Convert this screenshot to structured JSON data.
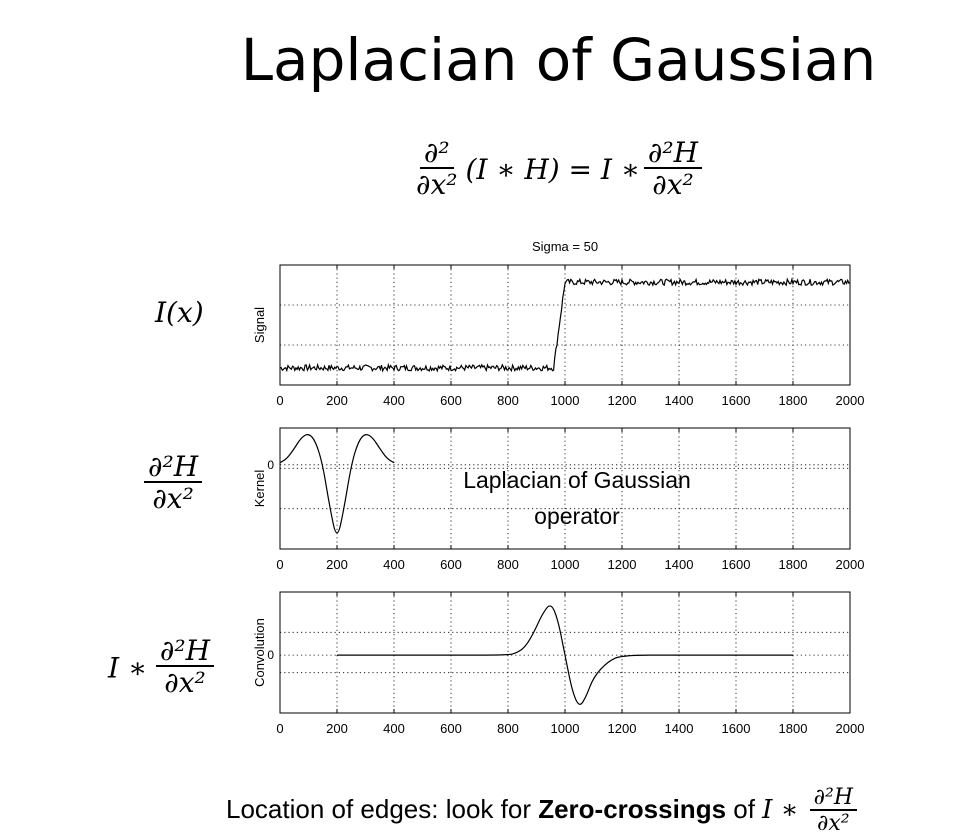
{
  "title": "Laplacian of Gaussian",
  "equation": {
    "lhs_num": "∂²",
    "lhs_den": "∂x²",
    "lhs_rest": "(I ∗ H) = I ∗",
    "rhs_num": "∂²H",
    "rhs_den": "∂x²"
  },
  "panel_labels": {
    "signal": "I(x)",
    "kernel_num": "∂²H",
    "kernel_den": "∂x²",
    "conv_prefix": "I ∗",
    "conv_num": "∂²H",
    "conv_den": "∂x²"
  },
  "annotation": {
    "line1": "Laplacian of Gaussian",
    "line2": "operator"
  },
  "caption": {
    "prefix": "Location of  edges: look for ",
    "bold": "Zero-crossings",
    "suffix": " of ",
    "expr": "I ∗",
    "num": "∂²H",
    "den": "∂x²"
  },
  "chart_data": [
    {
      "type": "line",
      "title": "Sigma = 50",
      "ylabel": "Signal",
      "xlabel": "",
      "xlim": [
        0,
        2000
      ],
      "xticks": [
        "0",
        "200",
        "400",
        "600",
        "800",
        "1000",
        "1200",
        "1400",
        "1600",
        "1800",
        "2000"
      ],
      "yticks": [
        "0"
      ],
      "ylim": [
        -0.2,
        1.2
      ],
      "grid": true,
      "series": [
        {
          "x": [
            0,
            200,
            400,
            600,
            800,
            960,
            1000,
            1200,
            1400,
            1600,
            1800,
            2000
          ],
          "y": [
            0,
            0,
            0,
            0,
            0,
            0,
            1,
            1,
            1,
            1,
            1,
            1
          ]
        }
      ]
    },
    {
      "type": "line",
      "ylabel": "Kernel",
      "xlim": [
        0,
        2000
      ],
      "xticks": [
        "0",
        "200",
        "400",
        "600",
        "800",
        "1000",
        "1200",
        "1400",
        "1600",
        "1800",
        "2000"
      ],
      "yticks": [
        "0"
      ],
      "ylim": [
        -1.6,
        0.7
      ],
      "grid": true,
      "series": [
        {
          "x": [
            0,
            25,
            50,
            75,
            100,
            125,
            150,
            175,
            200,
            225,
            250,
            275,
            300,
            325,
            350,
            375,
            400
          ],
          "y": [
            0.04,
            0.12,
            0.31,
            0.52,
            0.6,
            0.45,
            0.0,
            -0.82,
            -1.45,
            -0.82,
            0.0,
            0.45,
            0.6,
            0.52,
            0.31,
            0.12,
            0.04
          ]
        }
      ]
    },
    {
      "type": "line",
      "ylabel": "Convolution",
      "xlim": [
        0,
        2000
      ],
      "xticks": [
        "0",
        "200",
        "400",
        "600",
        "800",
        "1000",
        "1200",
        "1400",
        "1600",
        "1800",
        "2000"
      ],
      "yticks": [
        "0"
      ],
      "ylim": [
        -1.1,
        1.2
      ],
      "grid": true,
      "series": [
        {
          "x": [
            200,
            400,
            600,
            800,
            830,
            860,
            890,
            920,
            950,
            975,
            1000,
            1025,
            1050,
            1075,
            1100,
            1150,
            1200,
            1400,
            1600,
            1800
          ],
          "y": [
            0,
            0,
            0,
            0,
            0.04,
            0.15,
            0.42,
            0.78,
            1.0,
            0.68,
            0.0,
            -0.68,
            -1.0,
            -0.78,
            -0.42,
            -0.12,
            0,
            0,
            0,
            0
          ]
        }
      ]
    }
  ]
}
